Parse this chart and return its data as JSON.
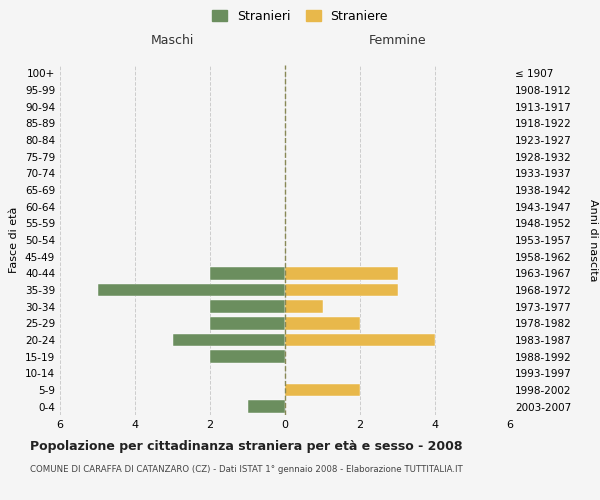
{
  "age_groups": [
    "0-4",
    "5-9",
    "10-14",
    "15-19",
    "20-24",
    "25-29",
    "30-34",
    "35-39",
    "40-44",
    "45-49",
    "50-54",
    "55-59",
    "60-64",
    "65-69",
    "70-74",
    "75-79",
    "80-84",
    "85-89",
    "90-94",
    "95-99",
    "100+"
  ],
  "birth_years": [
    "2003-2007",
    "1998-2002",
    "1993-1997",
    "1988-1992",
    "1983-1987",
    "1978-1982",
    "1973-1977",
    "1968-1972",
    "1963-1967",
    "1958-1962",
    "1953-1957",
    "1948-1952",
    "1943-1947",
    "1938-1942",
    "1933-1937",
    "1928-1932",
    "1923-1927",
    "1918-1922",
    "1913-1917",
    "1908-1912",
    "≤ 1907"
  ],
  "maschi": [
    1,
    0,
    0,
    2,
    3,
    2,
    2,
    5,
    2,
    0,
    0,
    0,
    0,
    0,
    0,
    0,
    0,
    0,
    0,
    0,
    0
  ],
  "femmine": [
    0,
    2,
    0,
    0,
    4,
    2,
    1,
    3,
    3,
    0,
    0,
    0,
    0,
    0,
    0,
    0,
    0,
    0,
    0,
    0,
    0
  ],
  "color_maschi": "#6B8E5E",
  "color_femmine": "#E8B84B",
  "background_color": "#F5F5F5",
  "grid_color": "#CCCCCC",
  "center_line_color": "#888855",
  "title": "Popolazione per cittadinanza straniera per età e sesso - 2008",
  "subtitle": "COMUNE DI CARAFFA DI CATANZARO (CZ) - Dati ISTAT 1° gennaio 2008 - Elaborazione TUTTITALIA.IT",
  "ylabel_left": "Fasce di età",
  "ylabel_right": "Anni di nascita",
  "label_maschi": "Maschi",
  "label_femmine": "Femmine",
  "legend_stranieri": "Stranieri",
  "legend_straniere": "Straniere",
  "xlim": 6,
  "bar_height": 0.75
}
